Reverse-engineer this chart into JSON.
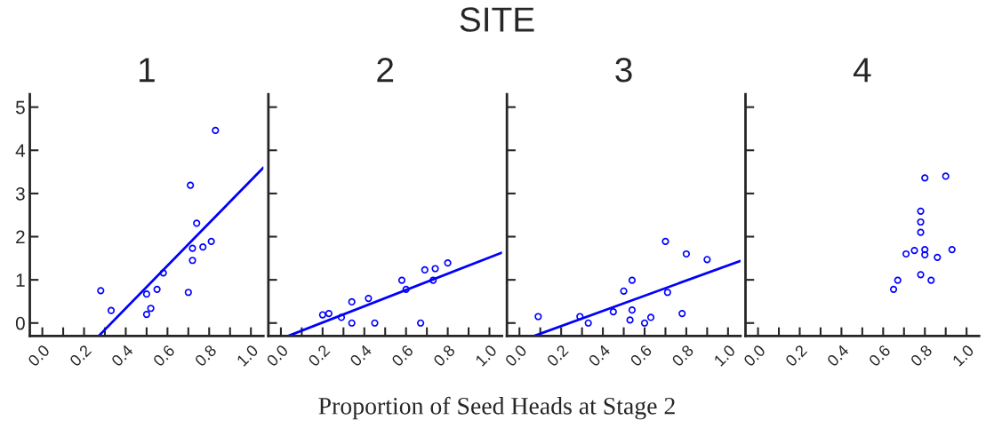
{
  "chart_data": [
    {
      "type": "scatter",
      "title": "1",
      "annotations": [
        "SITE",
        "Proportion of Seed Heads at Stage 2"
      ],
      "marker": "circle",
      "grid": false,
      "legend": false,
      "xlim": [
        -0.06,
        1.06
      ],
      "ylim": [
        -0.3,
        5.3
      ],
      "xticks": [
        {
          "value": 0.0,
          "label": "0.0"
        },
        {
          "value": 0.1,
          "label": null
        },
        {
          "value": 0.2,
          "label": "0.2"
        },
        {
          "value": 0.3,
          "label": null
        },
        {
          "value": 0.4,
          "label": "0.4"
        },
        {
          "value": 0.5,
          "label": null
        },
        {
          "value": 0.6,
          "label": "0.6"
        },
        {
          "value": 0.7,
          "label": null
        },
        {
          "value": 0.8,
          "label": "0.8"
        },
        {
          "value": 0.9,
          "label": null
        },
        {
          "value": 1.0,
          "label": "1.0"
        }
      ],
      "yticks": [
        0,
        1,
        2,
        3,
        4,
        5
      ],
      "series": [
        {
          "type": "scatter",
          "color": "#0000ff",
          "x": [
            0.28,
            0.33,
            0.5,
            0.5,
            0.52,
            0.55,
            0.58,
            0.7,
            0.71,
            0.72,
            0.72,
            0.74,
            0.77,
            0.81,
            0.83
          ],
          "values": [
            0.75,
            0.29,
            0.67,
            0.2,
            0.34,
            0.78,
            1.16,
            0.71,
            3.19,
            1.73,
            1.45,
            2.31,
            1.76,
            1.89,
            4.46
          ]
        },
        {
          "type": "line",
          "color": "#0000ff",
          "marker": "none",
          "x": [
            0.27,
            1.06
          ],
          "values": [
            -0.3,
            3.6
          ]
        }
      ]
    },
    {
      "type": "scatter",
      "title": "2",
      "marker": "circle",
      "grid": false,
      "legend": false,
      "tick_labels": "x",
      "xlim": [
        -0.06,
        1.06
      ],
      "ylim": [
        -0.3,
        5.3
      ],
      "xticks": [
        {
          "value": 0.0,
          "label": "0.0"
        },
        {
          "value": 0.1,
          "label": null
        },
        {
          "value": 0.2,
          "label": "0.2"
        },
        {
          "value": 0.3,
          "label": null
        },
        {
          "value": 0.4,
          "label": "0.4"
        },
        {
          "value": 0.5,
          "label": null
        },
        {
          "value": 0.6,
          "label": "0.6"
        },
        {
          "value": 0.7,
          "label": null
        },
        {
          "value": 0.8,
          "label": "0.8"
        },
        {
          "value": 0.9,
          "label": null
        },
        {
          "value": 1.0,
          "label": "1.0"
        }
      ],
      "yticks": [
        0,
        1,
        2,
        3,
        4,
        5
      ],
      "series": [
        {
          "type": "scatter",
          "color": "#0000ff",
          "x": [
            0.2,
            0.23,
            0.29,
            0.34,
            0.34,
            0.42,
            0.45,
            0.58,
            0.6,
            0.67,
            0.69,
            0.73,
            0.74,
            0.8
          ],
          "values": [
            0.19,
            0.22,
            0.13,
            0.49,
            0.0,
            0.57,
            0.0,
            0.99,
            0.78,
            0.0,
            1.23,
            0.99,
            1.26,
            1.39
          ]
        },
        {
          "type": "line",
          "color": "#0000ff",
          "marker": "none",
          "x": [
            0.035,
            1.06
          ],
          "values": [
            -0.3,
            1.63
          ]
        }
      ]
    },
    {
      "type": "scatter",
      "title": "3",
      "marker": "circle",
      "grid": false,
      "legend": false,
      "tick_labels": "x",
      "xlim": [
        -0.06,
        1.06
      ],
      "ylim": [
        -0.3,
        5.3
      ],
      "xticks": [
        {
          "value": 0.0,
          "label": "0.0"
        },
        {
          "value": 0.1,
          "label": null
        },
        {
          "value": 0.2,
          "label": "0.2"
        },
        {
          "value": 0.3,
          "label": null
        },
        {
          "value": 0.4,
          "label": "0.4"
        },
        {
          "value": 0.5,
          "label": null
        },
        {
          "value": 0.6,
          "label": "0.6"
        },
        {
          "value": 0.7,
          "label": null
        },
        {
          "value": 0.8,
          "label": "0.8"
        },
        {
          "value": 0.9,
          "label": null
        },
        {
          "value": 1.0,
          "label": "1.0"
        }
      ],
      "yticks": [
        0,
        1,
        2,
        3,
        4,
        5
      ],
      "series": [
        {
          "type": "scatter",
          "color": "#0000ff",
          "x": [
            0.09,
            0.29,
            0.33,
            0.45,
            0.5,
            0.54,
            0.54,
            0.53,
            0.6,
            0.63,
            0.7,
            0.71,
            0.78,
            0.8,
            0.9
          ],
          "values": [
            0.15,
            0.15,
            0.0,
            0.26,
            0.74,
            0.99,
            0.3,
            0.07,
            0.0,
            0.13,
            1.89,
            0.71,
            0.22,
            1.6,
            1.47
          ]
        },
        {
          "type": "line",
          "color": "#0000ff",
          "marker": "none",
          "x": [
            0.07,
            1.06
          ],
          "values": [
            -0.3,
            1.44
          ]
        }
      ]
    },
    {
      "type": "scatter",
      "title": "4",
      "marker": "circle",
      "grid": false,
      "legend": false,
      "tick_labels": "x",
      "xlim": [
        -0.06,
        1.06
      ],
      "ylim": [
        -0.3,
        5.3
      ],
      "xticks": [
        {
          "value": 0.0,
          "label": "0.0"
        },
        {
          "value": 0.1,
          "label": null
        },
        {
          "value": 0.2,
          "label": "0.2"
        },
        {
          "value": 0.3,
          "label": null
        },
        {
          "value": 0.4,
          "label": "0.4"
        },
        {
          "value": 0.5,
          "label": null
        },
        {
          "value": 0.6,
          "label": "0.6"
        },
        {
          "value": 0.7,
          "label": null
        },
        {
          "value": 0.8,
          "label": "0.8"
        },
        {
          "value": 0.9,
          "label": null
        },
        {
          "value": 1.0,
          "label": "1.0"
        }
      ],
      "yticks": [
        0,
        1,
        2,
        3,
        4,
        5
      ],
      "series": [
        {
          "type": "scatter",
          "color": "#0000ff",
          "x": [
            0.65,
            0.67,
            0.71,
            0.75,
            0.78,
            0.78,
            0.78,
            0.78,
            0.8,
            0.8,
            0.8,
            0.83,
            0.86,
            0.9,
            0.93
          ],
          "values": [
            0.78,
            0.99,
            1.6,
            1.68,
            1.12,
            2.1,
            2.34,
            2.59,
            3.36,
            1.7,
            1.58,
            0.99,
            1.52,
            3.4,
            1.7
          ]
        }
      ]
    }
  ]
}
